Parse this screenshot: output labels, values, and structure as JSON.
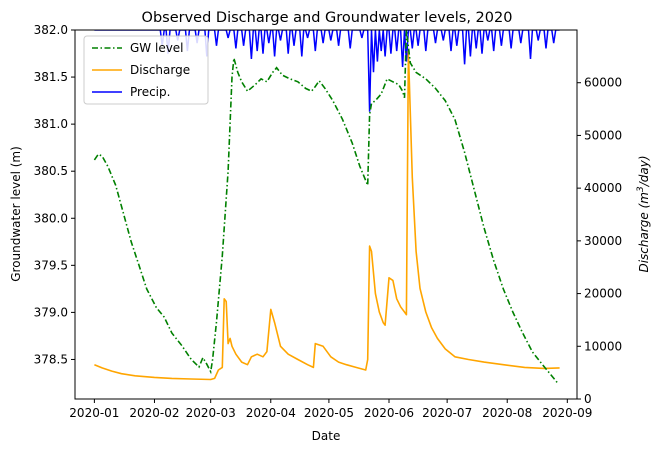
{
  "chart_data": {
    "type": "line",
    "title": "Observed Discharge and Groundwater levels, 2020",
    "xlabel": "Date",
    "ylabel_left": "Groundwater level (m)",
    "ylabel_right_prefix": "Discharge (m",
    "ylabel_right_sup": "3",
    "ylabel_right_suffix": "/day)",
    "x_ticks": [
      "2020-01",
      "2020-02",
      "2020-03",
      "2020-04",
      "2020-05",
      "2020-06",
      "2020-07",
      "2020-08",
      "2020-09"
    ],
    "y_left_ticks": [
      "378.5",
      "379.0",
      "379.5",
      "380.0",
      "380.5",
      "381.0",
      "381.5",
      "382.0"
    ],
    "y_right_ticks": [
      "0",
      "10000",
      "20000",
      "30000",
      "40000",
      "50000",
      "60000"
    ],
    "ylim_left": [
      378.08,
      382.0
    ],
    "ylim_right": [
      0,
      70000
    ],
    "xlim": [
      "2019-12-22",
      "2020-09-06"
    ],
    "legend": {
      "placement": "top-left",
      "entries": [
        "GW level",
        "Discharge",
        "Precip."
      ]
    },
    "colors": {
      "gw": "#008000",
      "discharge": "#ffa500",
      "precip": "#0000ff"
    },
    "series": [
      {
        "name": "GW level",
        "axis": "left",
        "style": "dashdot",
        "points": [
          [
            "2020-01-01",
            380.62
          ],
          [
            "2020-01-03",
            380.68
          ],
          [
            "2020-01-05",
            380.66
          ],
          [
            "2020-01-08",
            380.55
          ],
          [
            "2020-01-12",
            380.35
          ],
          [
            "2020-01-16",
            380.05
          ],
          [
            "2020-01-20",
            379.75
          ],
          [
            "2020-01-24",
            379.5
          ],
          [
            "2020-01-28",
            379.25
          ],
          [
            "2020-02-02",
            379.05
          ],
          [
            "2020-02-06",
            378.95
          ],
          [
            "2020-02-10",
            378.78
          ],
          [
            "2020-02-15",
            378.65
          ],
          [
            "2020-02-20",
            378.5
          ],
          [
            "2020-02-24",
            378.42
          ],
          [
            "2020-02-26",
            378.52
          ],
          [
            "2020-02-28",
            378.45
          ],
          [
            "2020-03-01",
            378.37
          ],
          [
            "2020-03-02",
            378.5
          ],
          [
            "2020-03-04",
            378.9
          ],
          [
            "2020-03-07",
            379.6
          ],
          [
            "2020-03-10",
            380.5
          ],
          [
            "2020-03-12",
            381.5
          ],
          [
            "2020-03-13",
            381.7
          ],
          [
            "2020-03-15",
            381.55
          ],
          [
            "2020-03-17",
            381.45
          ],
          [
            "2020-03-20",
            381.35
          ],
          [
            "2020-03-24",
            381.42
          ],
          [
            "2020-03-27",
            381.48
          ],
          [
            "2020-03-30",
            381.45
          ],
          [
            "2020-04-02",
            381.55
          ],
          [
            "2020-04-04",
            381.6
          ],
          [
            "2020-04-07",
            381.52
          ],
          [
            "2020-04-11",
            381.48
          ],
          [
            "2020-04-15",
            381.45
          ],
          [
            "2020-04-19",
            381.38
          ],
          [
            "2020-04-22",
            381.35
          ],
          [
            "2020-04-24",
            381.4
          ],
          [
            "2020-04-26",
            381.46
          ],
          [
            "2020-04-29",
            381.38
          ],
          [
            "2020-05-03",
            381.25
          ],
          [
            "2020-05-08",
            381.05
          ],
          [
            "2020-05-13",
            380.8
          ],
          [
            "2020-05-17",
            380.55
          ],
          [
            "2020-05-21",
            380.35
          ],
          [
            "2020-05-22",
            381.1
          ],
          [
            "2020-05-23",
            381.22
          ],
          [
            "2020-05-25",
            381.25
          ],
          [
            "2020-05-28",
            381.32
          ],
          [
            "2020-05-31",
            381.48
          ],
          [
            "2020-06-03",
            381.45
          ],
          [
            "2020-06-06",
            381.42
          ],
          [
            "2020-06-08",
            381.35
          ],
          [
            "2020-06-09",
            381.28
          ],
          [
            "2020-06-10",
            382.0
          ],
          [
            "2020-06-12",
            381.65
          ],
          [
            "2020-06-15",
            381.55
          ],
          [
            "2020-06-20",
            381.48
          ],
          [
            "2020-06-25",
            381.38
          ],
          [
            "2020-06-30",
            381.25
          ],
          [
            "2020-07-05",
            381.05
          ],
          [
            "2020-07-10",
            380.7
          ],
          [
            "2020-07-15",
            380.3
          ],
          [
            "2020-07-20",
            379.9
          ],
          [
            "2020-07-25",
            379.55
          ],
          [
            "2020-07-30",
            379.25
          ],
          [
            "2020-08-04",
            379.0
          ],
          [
            "2020-08-09",
            378.78
          ],
          [
            "2020-08-14",
            378.58
          ],
          [
            "2020-08-19",
            378.45
          ],
          [
            "2020-08-23",
            378.35
          ],
          [
            "2020-08-27",
            378.25
          ]
        ]
      },
      {
        "name": "Discharge",
        "axis": "right",
        "style": "solid",
        "points": [
          [
            "2020-01-01",
            6500
          ],
          [
            "2020-01-05",
            5900
          ],
          [
            "2020-01-10",
            5300
          ],
          [
            "2020-01-15",
            4800
          ],
          [
            "2020-01-22",
            4400
          ],
          [
            "2020-02-01",
            4100
          ],
          [
            "2020-02-10",
            3900
          ],
          [
            "2020-02-20",
            3800
          ],
          [
            "2020-03-01",
            3700
          ],
          [
            "2020-03-03",
            3900
          ],
          [
            "2020-03-05",
            5500
          ],
          [
            "2020-03-07",
            6000
          ],
          [
            "2020-03-08",
            19000
          ],
          [
            "2020-03-09",
            18500
          ],
          [
            "2020-03-10",
            10500
          ],
          [
            "2020-03-11",
            11500
          ],
          [
            "2020-03-12",
            10000
          ],
          [
            "2020-03-14",
            8500
          ],
          [
            "2020-03-17",
            7000
          ],
          [
            "2020-03-20",
            6500
          ],
          [
            "2020-03-22",
            8000
          ],
          [
            "2020-03-25",
            8500
          ],
          [
            "2020-03-28",
            8000
          ],
          [
            "2020-03-30",
            9000
          ],
          [
            "2020-04-01",
            17000
          ],
          [
            "2020-04-03",
            14500
          ],
          [
            "2020-04-06",
            10000
          ],
          [
            "2020-04-10",
            8500
          ],
          [
            "2020-04-15",
            7500
          ],
          [
            "2020-04-20",
            6500
          ],
          [
            "2020-04-23",
            6000
          ],
          [
            "2020-04-24",
            10500
          ],
          [
            "2020-04-28",
            10000
          ],
          [
            "2020-05-02",
            8000
          ],
          [
            "2020-05-06",
            7000
          ],
          [
            "2020-05-10",
            6500
          ],
          [
            "2020-05-15",
            6000
          ],
          [
            "2020-05-20",
            5500
          ],
          [
            "2020-05-21",
            7500
          ],
          [
            "2020-05-22",
            29000
          ],
          [
            "2020-05-23",
            28000
          ],
          [
            "2020-05-25",
            20000
          ],
          [
            "2020-05-27",
            16500
          ],
          [
            "2020-05-29",
            14500
          ],
          [
            "2020-05-30",
            14000
          ],
          [
            "2020-06-01",
            23000
          ],
          [
            "2020-06-03",
            22500
          ],
          [
            "2020-06-05",
            19000
          ],
          [
            "2020-06-07",
            17500
          ],
          [
            "2020-06-09",
            16500
          ],
          [
            "2020-06-10",
            16000
          ],
          [
            "2020-06-11",
            66000
          ],
          [
            "2020-06-13",
            42000
          ],
          [
            "2020-06-15",
            28000
          ],
          [
            "2020-06-17",
            21000
          ],
          [
            "2020-06-20",
            16500
          ],
          [
            "2020-06-23",
            13500
          ],
          [
            "2020-06-26",
            11500
          ],
          [
            "2020-06-30",
            9500
          ],
          [
            "2020-07-05",
            8000
          ],
          [
            "2020-07-12",
            7500
          ],
          [
            "2020-07-20",
            7000
          ],
          [
            "2020-07-30",
            6500
          ],
          [
            "2020-08-10",
            6000
          ],
          [
            "2020-08-20",
            5800
          ],
          [
            "2020-08-28",
            5900
          ]
        ]
      },
      {
        "name": "Precip.",
        "axis": "right",
        "style": "solid",
        "baseline": 70000,
        "drops": [
          [
            "2020-02-05",
            67000
          ],
          [
            "2020-02-08",
            65500
          ],
          [
            "2020-02-13",
            68000
          ],
          [
            "2020-02-18",
            66000
          ],
          [
            "2020-02-23",
            67500
          ],
          [
            "2020-02-28",
            65000
          ],
          [
            "2020-03-04",
            67000
          ],
          [
            "2020-03-10",
            68500
          ],
          [
            "2020-03-14",
            66500
          ],
          [
            "2020-03-18",
            67000
          ],
          [
            "2020-03-22",
            64500
          ],
          [
            "2020-03-25",
            66000
          ],
          [
            "2020-03-28",
            65500
          ],
          [
            "2020-03-31",
            67500
          ],
          [
            "2020-04-03",
            65000
          ],
          [
            "2020-04-06",
            68000
          ],
          [
            "2020-04-10",
            65500
          ],
          [
            "2020-04-13",
            67000
          ],
          [
            "2020-04-17",
            65000
          ],
          [
            "2020-04-20",
            68500
          ],
          [
            "2020-04-24",
            66000
          ],
          [
            "2020-04-28",
            67500
          ],
          [
            "2020-05-02",
            68000
          ],
          [
            "2020-05-06",
            67000
          ],
          [
            "2020-05-12",
            66500
          ],
          [
            "2020-05-18",
            68500
          ],
          [
            "2020-05-22",
            54500
          ],
          [
            "2020-05-24",
            62000
          ],
          [
            "2020-05-26",
            64000
          ],
          [
            "2020-05-28",
            66000
          ],
          [
            "2020-05-30",
            65000
          ],
          [
            "2020-06-02",
            65500
          ],
          [
            "2020-06-05",
            66000
          ],
          [
            "2020-06-08",
            63000
          ],
          [
            "2020-06-10",
            64000
          ],
          [
            "2020-06-13",
            66500
          ],
          [
            "2020-06-16",
            67000
          ],
          [
            "2020-06-20",
            66000
          ],
          [
            "2020-06-25",
            67500
          ],
          [
            "2020-06-29",
            68000
          ],
          [
            "2020-07-03",
            66000
          ],
          [
            "2020-07-06",
            67000
          ],
          [
            "2020-07-10",
            63500
          ],
          [
            "2020-07-13",
            65000
          ],
          [
            "2020-07-16",
            66500
          ],
          [
            "2020-07-19",
            65500
          ],
          [
            "2020-07-22",
            68000
          ],
          [
            "2020-07-25",
            66000
          ],
          [
            "2020-07-29",
            67000
          ],
          [
            "2020-08-03",
            66500
          ],
          [
            "2020-08-08",
            67500
          ],
          [
            "2020-08-13",
            64500
          ],
          [
            "2020-08-17",
            68000
          ],
          [
            "2020-08-21",
            66500
          ],
          [
            "2020-08-25",
            67500
          ]
        ]
      }
    ]
  }
}
